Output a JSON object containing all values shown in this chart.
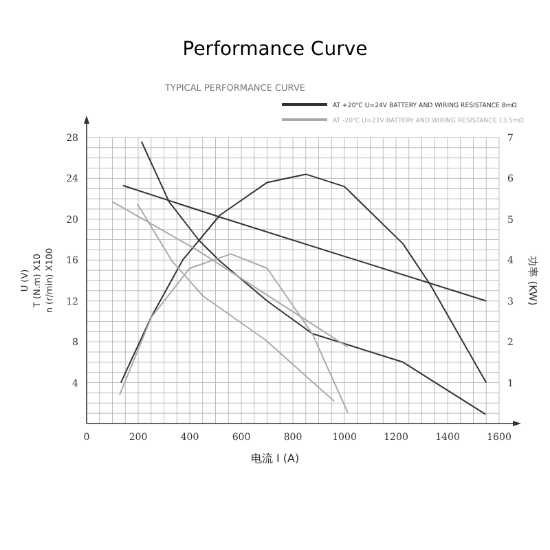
{
  "chart_data": {
    "type": "line",
    "title": "Performance Curve",
    "subtitle": "TYPICAL PERFORMANCE CURVE",
    "xlabel": "电流 I (A)",
    "ylabel": "U (V)\nT (N.m) X10\nn (r/min) X100",
    "y2label": "功率 (KW)",
    "xlim": [
      0,
      1600
    ],
    "xticks": [
      0,
      200,
      400,
      600,
      800,
      1000,
      1200,
      1400,
      1600
    ],
    "ylim": [
      0,
      28
    ],
    "yticks": [
      4,
      8,
      12,
      16,
      20,
      24,
      28
    ],
    "y2lim": [
      0,
      7
    ],
    "y2ticks": [
      1,
      2,
      3,
      4,
      5,
      6,
      7
    ],
    "grid": true,
    "legend": "top right",
    "marker": "none",
    "line_style": "solid",
    "series": [
      {
        "name": "AT +20℃ U=24V BATTERY AND WIRING RESISTANCE 8mΩ",
        "color": "#333333",
        "x": [
          140,
          517,
          1550
        ],
        "values": [
          23.3,
          20.2,
          12.0
        ]
      },
      {
        "color": "#333333",
        "x": [
          213,
          320,
          437,
          517,
          700,
          875,
          1051,
          1227,
          1547
        ],
        "values": [
          27.6,
          21.7,
          17.9,
          15.9,
          12.0,
          8.8,
          7.4,
          6.0,
          0.9
        ]
      },
      {
        "color": "#333333",
        "axis": "y2",
        "x": [
          133,
          250,
          373,
          517,
          700,
          850,
          1000,
          1227,
          1333,
          1550
        ],
        "values": [
          1.0,
          2.6,
          4.0,
          5.1,
          5.9,
          6.1,
          5.8,
          4.4,
          3.4,
          1.0
        ]
      },
      {
        "name": "AT -20℃ U=23V BATTERY AND WIRING RESISTANCE 13.5mΩ",
        "color": "#aaaaaa",
        "x": [
          101,
          427,
          1013
        ],
        "values": [
          21.7,
          17.0,
          7.5
        ]
      },
      {
        "color": "#aaaaaa",
        "x": [
          197,
          331,
          450,
          693,
          960
        ],
        "values": [
          21.5,
          15.9,
          12.5,
          8.2,
          2.2
        ]
      },
      {
        "color": "#aaaaaa",
        "axis": "y2",
        "x": [
          128,
          251,
          400,
          560,
          700,
          875,
          1013
        ],
        "values": [
          0.7,
          2.6,
          3.8,
          4.15,
          3.8,
          2.2,
          0.27
        ]
      }
    ]
  }
}
